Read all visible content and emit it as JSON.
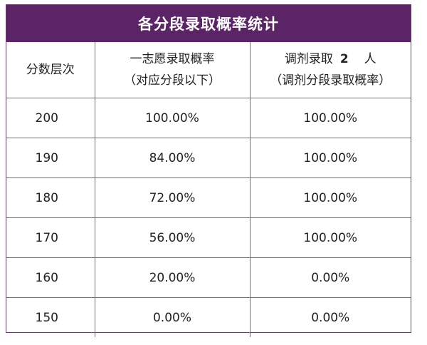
{
  "title": "各分段录取概率统计",
  "headers": {
    "col1": "分数层次",
    "col2_line1": "一志愿录取概率",
    "col2_line2": "（对应分段以下）",
    "col3_prefix": "调剂录取",
    "col3_number": "2",
    "col3_suffix": "人",
    "col3_line2": "（调剂分段录取概率）"
  },
  "rows": [
    {
      "score": "200",
      "first_choice": "100.00%",
      "adjusted": "100.00%"
    },
    {
      "score": "190",
      "first_choice": "84.00%",
      "adjusted": "100.00%"
    },
    {
      "score": "180",
      "first_choice": "72.00%",
      "adjusted": "100.00%"
    },
    {
      "score": "170",
      "first_choice": "56.00%",
      "adjusted": "100.00%"
    },
    {
      "score": "160",
      "first_choice": "20.00%",
      "adjusted": "0.00%"
    },
    {
      "score": "150",
      "first_choice": "0.00%",
      "adjusted": "0.00%"
    }
  ],
  "colors": {
    "header_bg": "#5b2466",
    "border": "#8a5a91"
  }
}
